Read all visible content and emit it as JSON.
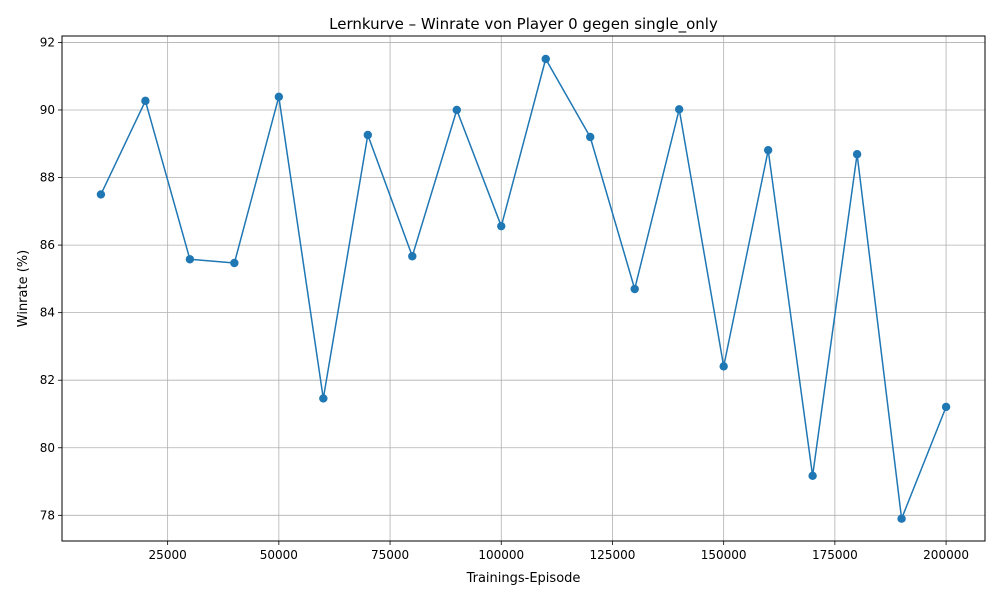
{
  "chart_data": {
    "type": "line",
    "title": "Lernkurve – Winrate von Player 0 gegen single_only",
    "xlabel": "Trainings-Episode",
    "ylabel": "Winrate (%)",
    "xlim": [
      1250,
      208750
    ],
    "ylim": [
      77.24,
      92.19
    ],
    "xticks": [
      25000,
      50000,
      75000,
      100000,
      125000,
      150000,
      175000,
      200000
    ],
    "yticks": [
      78,
      80,
      82,
      84,
      86,
      88,
      90,
      92
    ],
    "grid": true,
    "marker": "circle",
    "color": "#1f77b4",
    "series": [
      {
        "x": [
          10000,
          20000,
          30000,
          40000,
          50000,
          60000,
          70000,
          80000,
          90000,
          100000,
          110000,
          120000,
          130000,
          140000,
          150000,
          160000,
          170000,
          180000,
          190000,
          200000
        ],
        "values": [
          87.5,
          90.27,
          85.58,
          85.47,
          90.39,
          81.46,
          89.26,
          85.67,
          90.0,
          86.56,
          91.51,
          89.2,
          84.7,
          90.02,
          82.41,
          88.81,
          79.17,
          88.69,
          77.9,
          81.21
        ]
      }
    ]
  }
}
